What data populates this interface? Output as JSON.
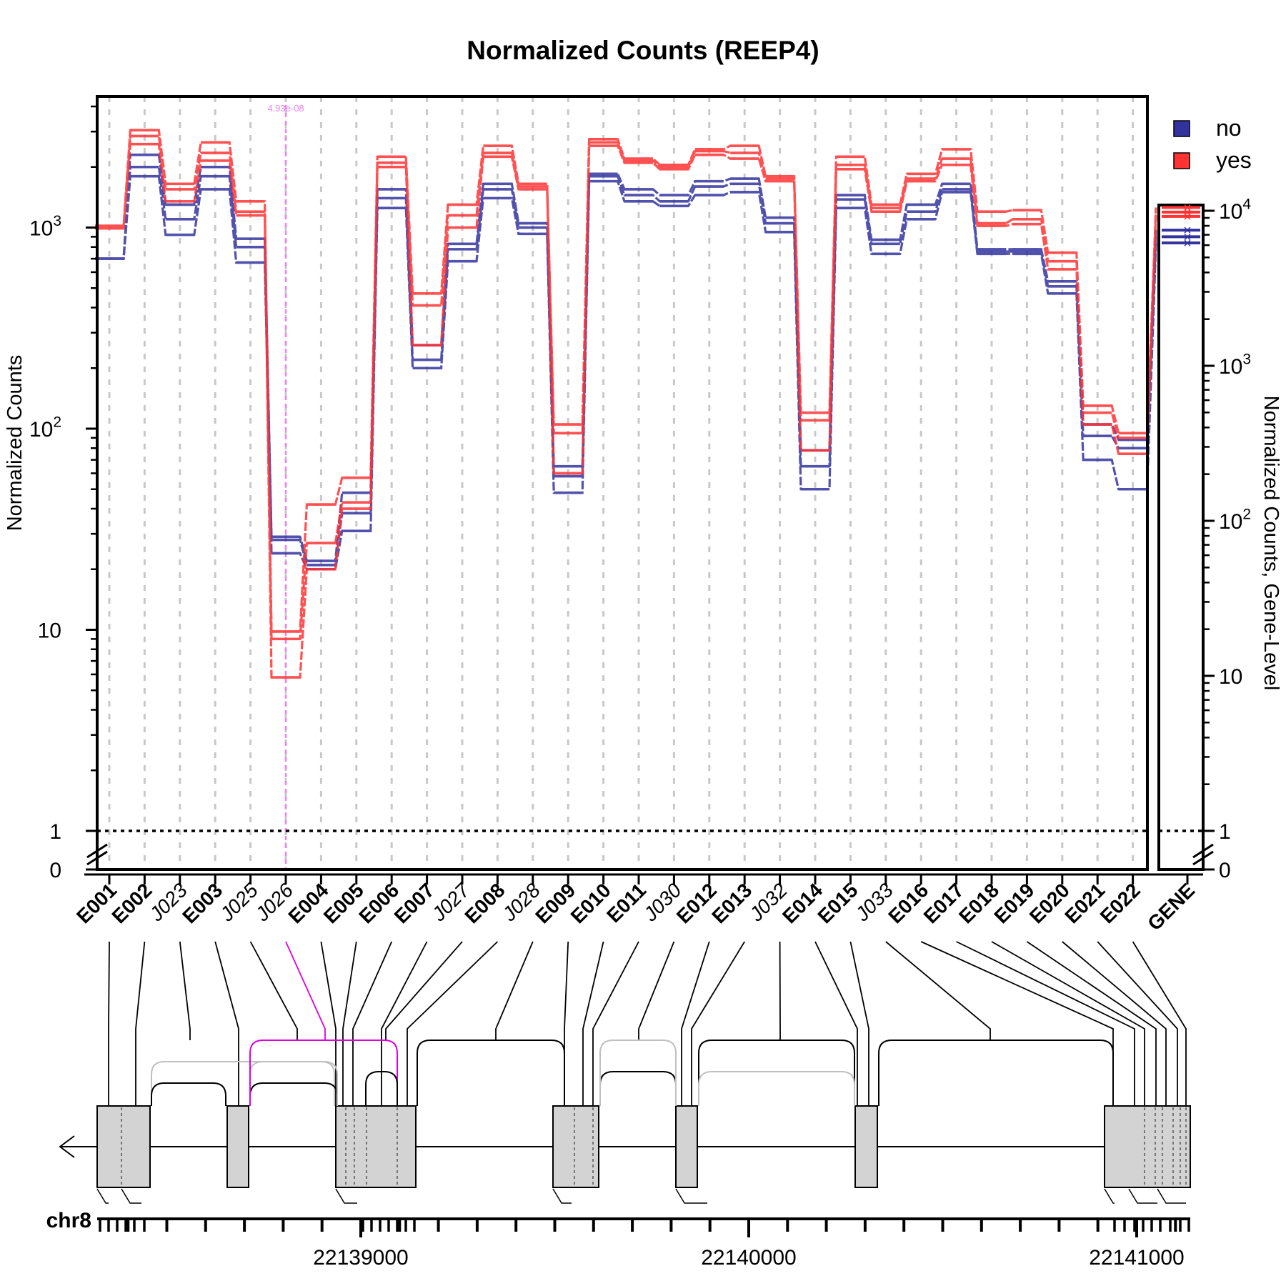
{
  "chart_data": {
    "type": "line",
    "title": "Normalized Counts (REEP4)",
    "ylabel": "Normalized Counts",
    "ylabel_right": "Normalized Counts, Gene-Level",
    "yscale": "log",
    "ylim": [
      0,
      4500
    ],
    "y_ticks": [
      {
        "value": 0,
        "label": "0"
      },
      {
        "value": 1,
        "label": "1"
      },
      {
        "value": 10,
        "label": "10"
      },
      {
        "value": 100,
        "label": "10^2"
      },
      {
        "value": 1000,
        "label": "10^3"
      }
    ],
    "y_ticks_right": [
      {
        "value": 0,
        "label": "0"
      },
      {
        "value": 1,
        "label": "1"
      },
      {
        "value": 10,
        "label": "10"
      },
      {
        "value": 100,
        "label": "10^2"
      },
      {
        "value": 1000,
        "label": "10^3"
      },
      {
        "value": 10000,
        "label": "10^4"
      }
    ],
    "categories": [
      "E001",
      "E002",
      "J023",
      "E003",
      "J025",
      "J026",
      "E004",
      "E005",
      "E006",
      "E007",
      "J027",
      "E008",
      "J028",
      "E009",
      "E010",
      "E011",
      "J030",
      "E012",
      "E013",
      "J032",
      "E014",
      "E015",
      "J033",
      "E016",
      "E017",
      "E018",
      "E019",
      "E020",
      "E021",
      "E022"
    ],
    "junction_categories": [
      "J023",
      "J025",
      "J026",
      "J027",
      "J028",
      "J030",
      "J032",
      "J033"
    ],
    "significance_marker": {
      "feature": "J026",
      "label": "4.93e-08",
      "color": "#ee82ee"
    },
    "legend": {
      "position": "top-right",
      "entries": [
        {
          "name": "no",
          "color": "#3333a0"
        },
        {
          "name": "yes",
          "color": "#ff3333"
        }
      ]
    },
    "series": [
      {
        "name": "no",
        "color": "#3333a0",
        "values": [
          [
            700,
            700,
            700
          ],
          [
            1800,
            2000,
            2300
          ],
          [
            920,
            1100,
            1300
          ],
          [
            1550,
            1800,
            2000
          ],
          [
            670,
            800,
            880
          ],
          [
            24,
            28,
            29
          ],
          [
            20,
            21,
            22
          ],
          [
            31,
            38,
            48
          ],
          [
            1250,
            1400,
            1550
          ],
          [
            200,
            220,
            260
          ],
          [
            680,
            780,
            830
          ],
          [
            1400,
            1550,
            1650
          ],
          [
            930,
            1000,
            1050
          ],
          [
            48,
            58,
            65
          ],
          [
            1700,
            1800,
            1850
          ],
          [
            1350,
            1450,
            1550
          ],
          [
            1280,
            1350,
            1450
          ],
          [
            1450,
            1600,
            1700
          ],
          [
            1500,
            1650,
            1750
          ],
          [
            950,
            1050,
            1120
          ],
          [
            50,
            65,
            78
          ],
          [
            1250,
            1380,
            1450
          ],
          [
            740,
            830,
            870
          ],
          [
            1100,
            1200,
            1300
          ],
          [
            1500,
            1550,
            1650
          ],
          [
            740,
            760,
            780
          ],
          [
            740,
            760,
            780
          ],
          [
            470,
            510,
            540
          ],
          [
            70,
            92,
            105
          ],
          [
            50,
            80,
            88
          ]
        ],
        "gene_level": [
          6200,
          6800,
          7500
        ]
      },
      {
        "name": "yes",
        "color": "#ff3333",
        "values": [
          [
            990,
            1000,
            1020
          ],
          [
            2600,
            2850,
            3050
          ],
          [
            1350,
            1550,
            1650
          ],
          [
            2150,
            2350,
            2650
          ],
          [
            1150,
            1200,
            1350
          ],
          [
            5.8,
            9,
            9.8
          ],
          [
            20,
            27,
            42
          ],
          [
            40,
            43,
            57
          ],
          [
            2000,
            2100,
            2250
          ],
          [
            260,
            410,
            470
          ],
          [
            1000,
            1150,
            1300
          ],
          [
            2250,
            2350,
            2550
          ],
          [
            1550,
            1600,
            1650
          ],
          [
            60,
            95,
            105
          ],
          [
            2550,
            2650,
            2750
          ],
          [
            2100,
            2150,
            2200
          ],
          [
            1950,
            2000,
            2050
          ],
          [
            2300,
            2400,
            2450
          ],
          [
            2200,
            2350,
            2550
          ],
          [
            1700,
            1750,
            1800
          ],
          [
            78,
            110,
            120
          ],
          [
            1950,
            2050,
            2250
          ],
          [
            1200,
            1250,
            1300
          ],
          [
            1700,
            1750,
            1850
          ],
          [
            2050,
            2200,
            2450
          ],
          [
            1020,
            1050,
            1200
          ],
          [
            1040,
            1100,
            1220
          ],
          [
            620,
            680,
            750
          ],
          [
            105,
            120,
            130
          ],
          [
            75,
            90,
            95
          ]
        ],
        "gene_level": [
          9200,
          9800,
          10500
        ]
      }
    ],
    "gene_panel_label": "GENE",
    "genomic": {
      "chromosome": "chr8",
      "strand": "minus",
      "tick_labels": [
        "22139000",
        "22140000",
        "22141000"
      ]
    }
  }
}
